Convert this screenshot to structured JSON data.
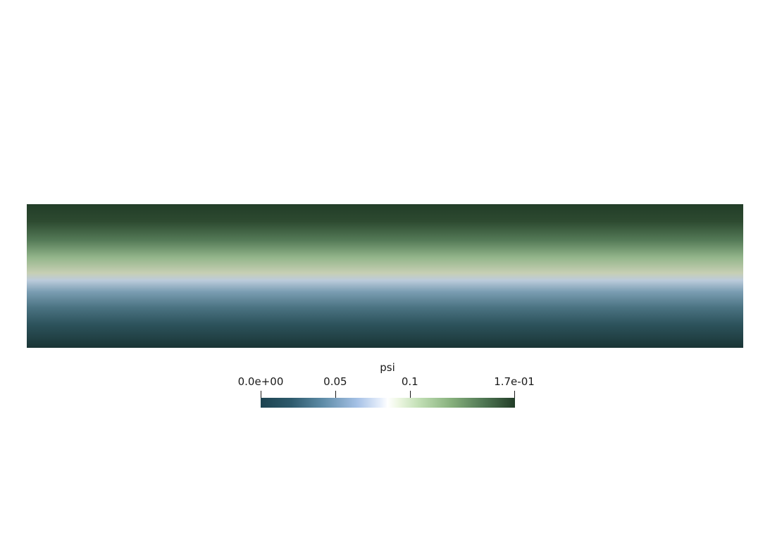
{
  "colorbar": {
    "title": "psi",
    "min": 0.0,
    "max": 0.17,
    "ticks": [
      {
        "label": "0.0e+00",
        "value": 0.0
      },
      {
        "label": "0.05",
        "value": 0.05
      },
      {
        "label": "0.1",
        "value": 0.1
      },
      {
        "label": "1.7e-01",
        "value": 0.17
      }
    ],
    "colormap": [
      "#1c4350",
      "#5c8aa5",
      "#ffffff",
      "#86b07c",
      "#223d28"
    ]
  },
  "chart_data": {
    "type": "heatmap",
    "title": "",
    "variable": "psi",
    "range": [
      0.0,
      0.17
    ],
    "orientation": "field varies vertically: high values at top, low values at bottom, constant horizontally",
    "profile": [
      {
        "row": "top",
        "value": 0.17
      },
      {
        "row": "upper-middle",
        "value": 0.12
      },
      {
        "row": "center",
        "value": 0.085
      },
      {
        "row": "lower-middle",
        "value": 0.04
      },
      {
        "row": "bottom",
        "value": 0.0
      }
    ]
  }
}
